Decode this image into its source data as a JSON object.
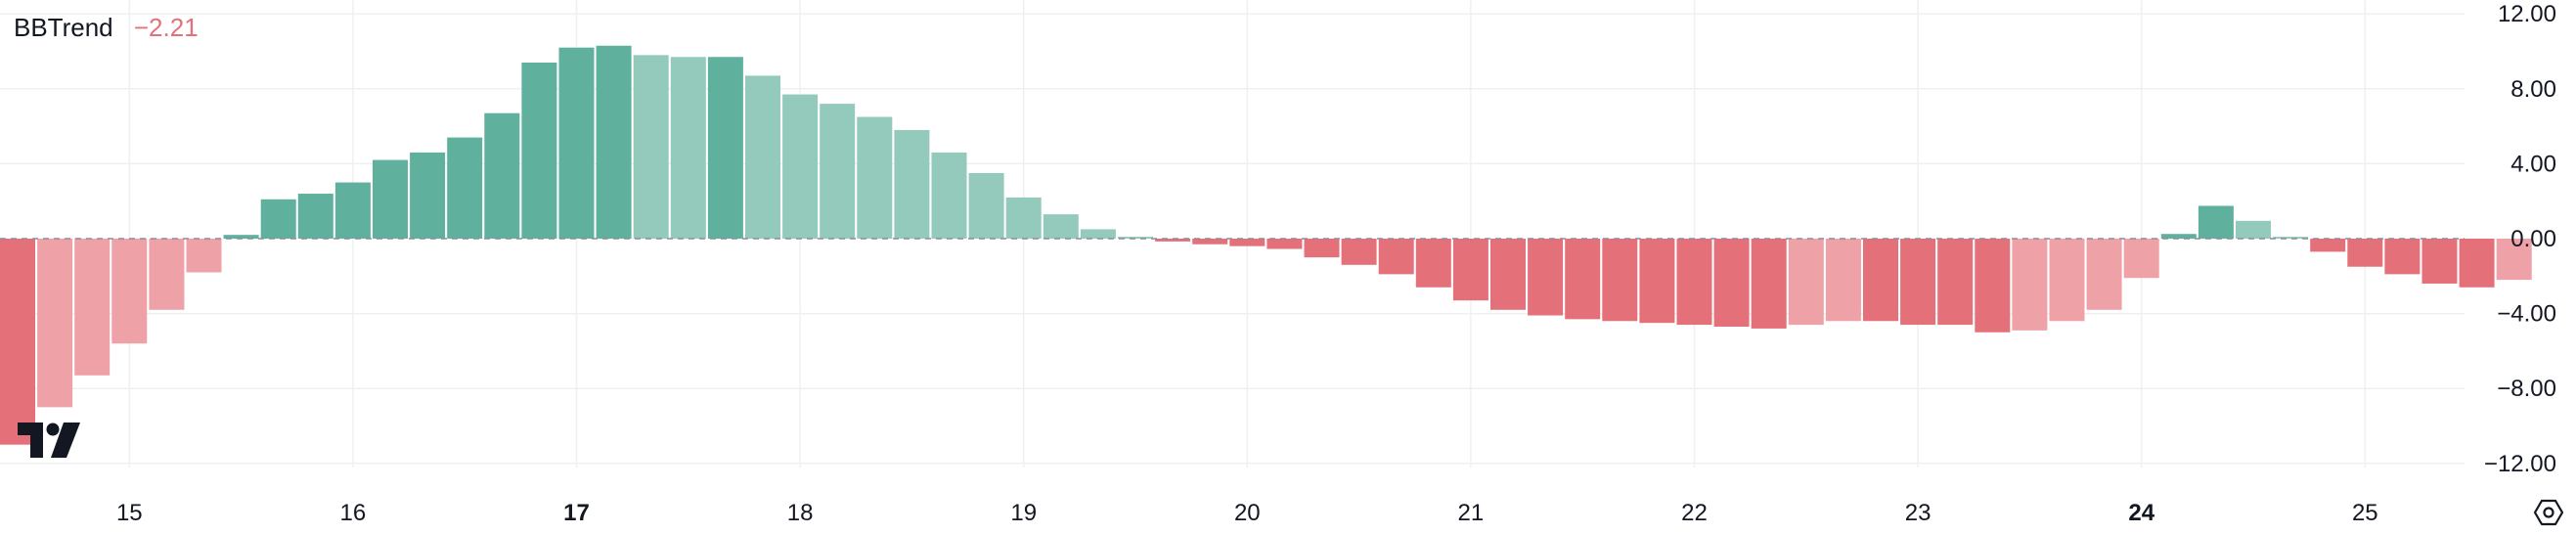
{
  "legend": {
    "indicator": "BBTrend",
    "value": "−2.21"
  },
  "colors": {
    "pos_strong": "#5fb19e",
    "pos_weak": "#94cabb",
    "neg_strong": "#e4707a",
    "neg_weak": "#eea1a6",
    "grid": "#eef0f3",
    "zero_line": "#8a8e99",
    "text": "#131722"
  },
  "icons": {
    "logo": "tradingview-logo",
    "settings": "settings-icon"
  },
  "chart_data": {
    "type": "bar",
    "title": "BBTrend",
    "ylim": [
      -14.5,
      14.5
    ],
    "y_ticks": [
      {
        "value": 12,
        "label": "12.00"
      },
      {
        "value": 8,
        "label": "8.00"
      },
      {
        "value": 4,
        "label": "4.00"
      },
      {
        "value": 0,
        "label": "0.00"
      },
      {
        "value": -4,
        "label": "−4.00"
      },
      {
        "value": -8,
        "label": "−8.00"
      },
      {
        "value": -12,
        "label": "−12.00"
      }
    ],
    "x_ticks": [
      {
        "bar": 3,
        "label": "15",
        "bold": false
      },
      {
        "bar": 9,
        "label": "16",
        "bold": false
      },
      {
        "bar": 15,
        "label": "17",
        "bold": true
      },
      {
        "bar": 21,
        "label": "18",
        "bold": false
      },
      {
        "bar": 27,
        "label": "19",
        "bold": false
      },
      {
        "bar": 33,
        "label": "20",
        "bold": false
      },
      {
        "bar": 39,
        "label": "21",
        "bold": false
      },
      {
        "bar": 45,
        "label": "22",
        "bold": false
      },
      {
        "bar": 51,
        "label": "23",
        "bold": false
      },
      {
        "bar": 57,
        "label": "24",
        "bold": true
      },
      {
        "bar": 63,
        "label": "25",
        "bold": false
      }
    ],
    "values": [
      -11.0,
      -9.0,
      -7.3,
      -5.6,
      -3.8,
      -1.8,
      0.2,
      2.1,
      2.4,
      3.0,
      4.2,
      4.6,
      5.4,
      6.7,
      9.4,
      10.2,
      10.3,
      9.8,
      9.7,
      9.7,
      8.7,
      7.7,
      7.2,
      6.5,
      5.8,
      4.6,
      3.5,
      2.2,
      1.3,
      0.5,
      0.1,
      -0.15,
      -0.3,
      -0.4,
      -0.55,
      -1.0,
      -1.4,
      -1.9,
      -2.6,
      -3.3,
      -3.8,
      -4.1,
      -4.3,
      -4.4,
      -4.5,
      -4.6,
      -4.7,
      -4.8,
      -4.6,
      -4.4,
      -4.4,
      -4.6,
      -4.6,
      -5.0,
      -4.9,
      -4.4,
      -3.8,
      -2.1,
      0.25,
      1.75,
      0.95,
      0.1,
      -0.7,
      -1.5,
      -1.9,
      -2.4,
      -2.6,
      -2.2
    ]
  }
}
